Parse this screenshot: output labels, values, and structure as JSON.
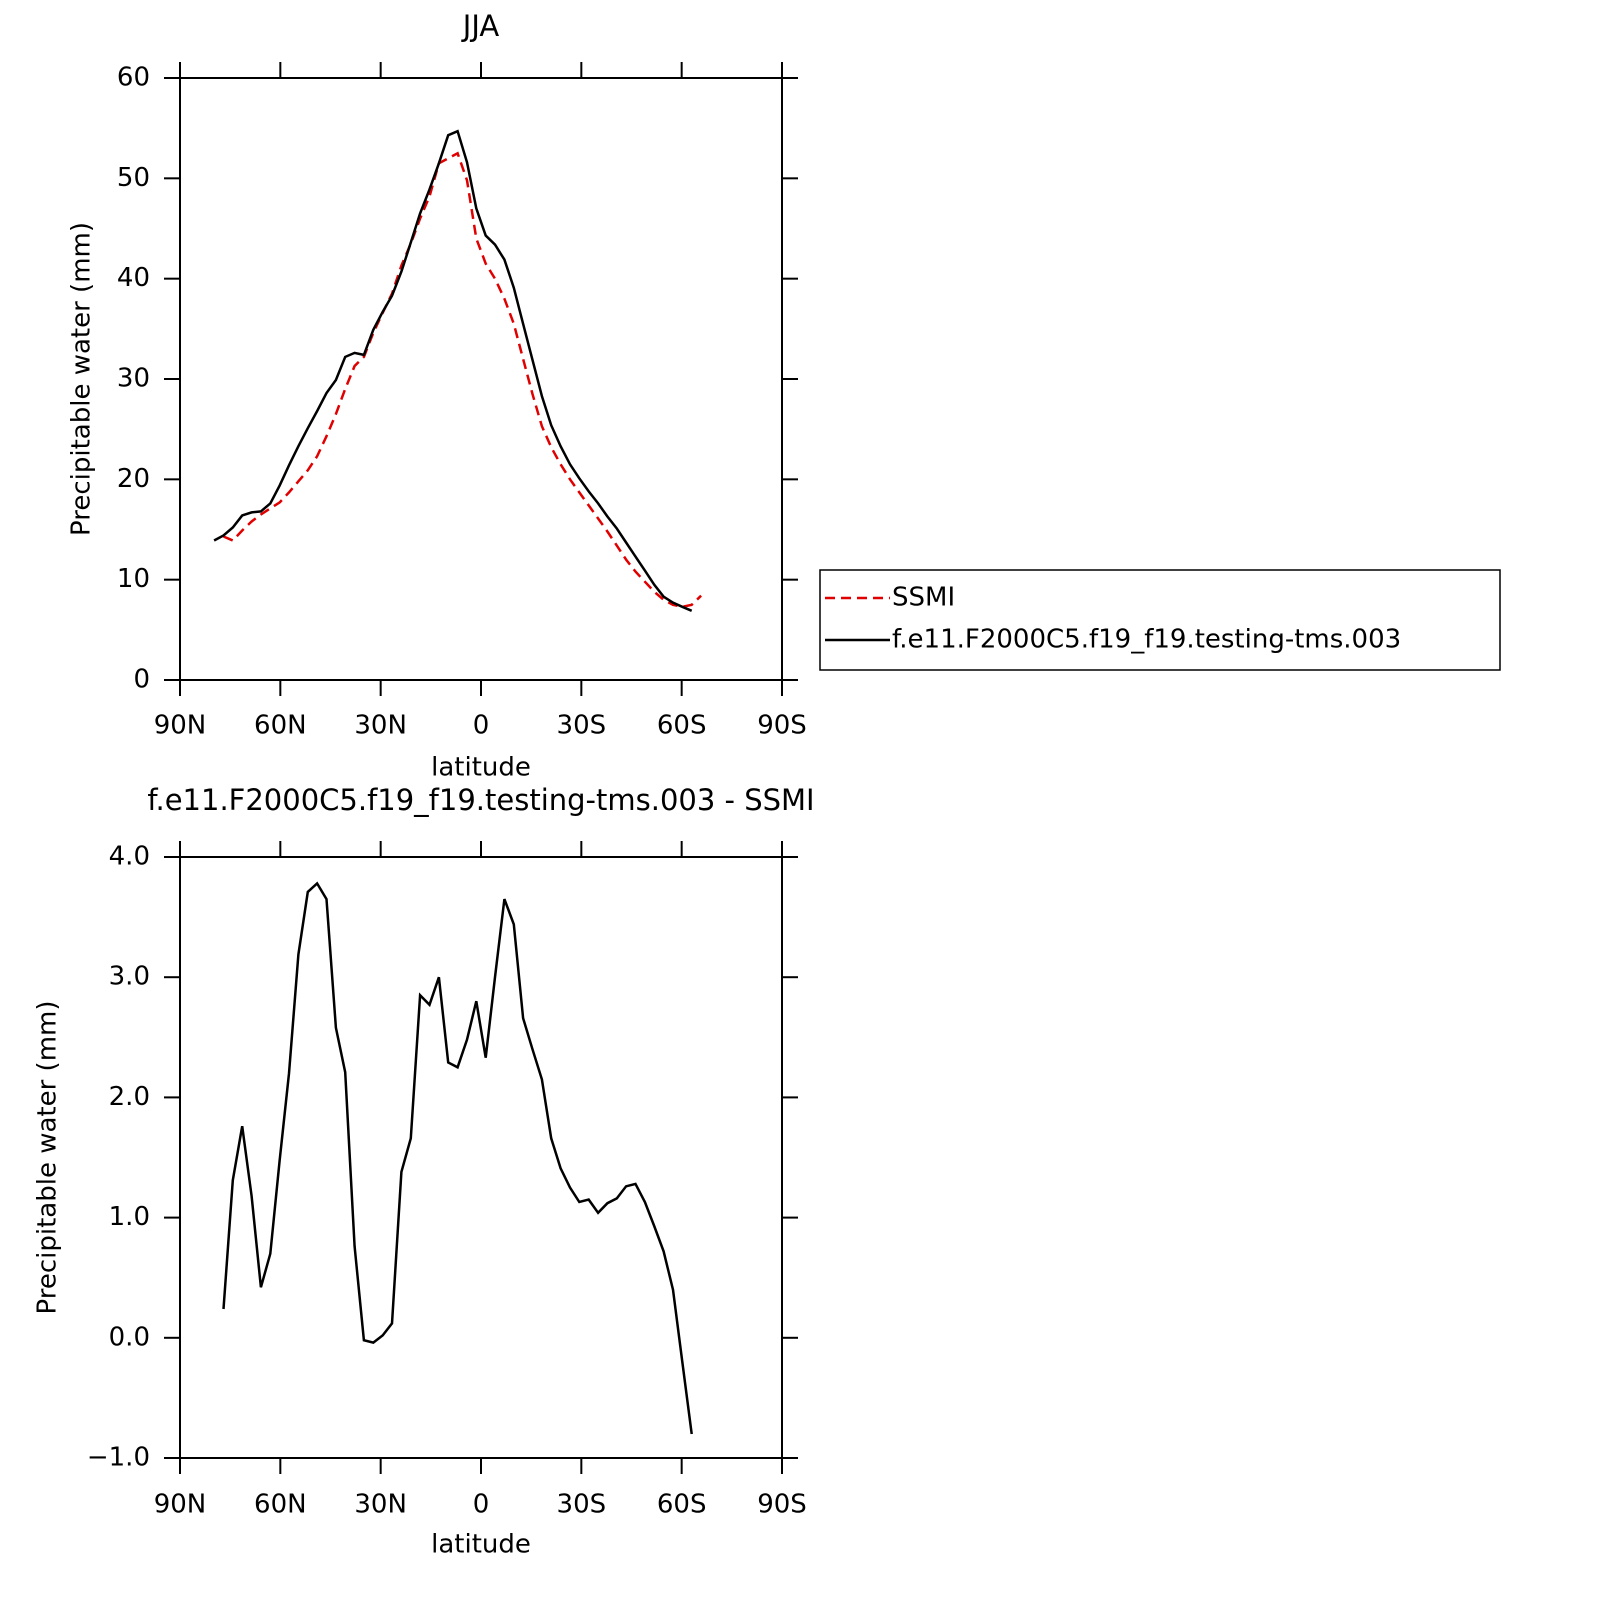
{
  "chart_data": [
    {
      "type": "line",
      "title": "JJA",
      "xlabel": "latitude",
      "ylabel": "Precipitable water (mm)",
      "x": [
        79.8,
        77.0,
        74.2,
        71.4,
        68.6,
        65.8,
        63.0,
        60.2,
        57.4,
        54.6,
        51.8,
        49.0,
        46.2,
        43.4,
        40.6,
        37.8,
        35.0,
        32.2,
        29.4,
        26.6,
        23.8,
        21.0,
        18.2,
        15.4,
        12.6,
        9.8,
        7.0,
        4.2,
        1.4,
        -1.4,
        -4.2,
        -7.0,
        -9.8,
        -12.6,
        -15.4,
        -18.2,
        -21.0,
        -23.8,
        -26.6,
        -29.4,
        -32.2,
        -35.0,
        -37.8,
        -40.6,
        -43.4,
        -46.2,
        -49.0,
        -51.8,
        -54.6,
        -57.4,
        -60.2,
        -63.0,
        -65.8
      ],
      "series": [
        {
          "name": "SSMI",
          "color": "#e00000",
          "dash": "dashed",
          "values": [
            null,
            14.3,
            13.9,
            14.9,
            15.8,
            16.5,
            17.1,
            17.7,
            18.7,
            19.8,
            20.9,
            22.3,
            24.3,
            26.5,
            29.0,
            31.3,
            32.2,
            34.6,
            36.6,
            38.5,
            41.3,
            43.5,
            46.0,
            48.2,
            51.5,
            52.0,
            52.5,
            49.8,
            44.0,
            41.5,
            40.0,
            38.0,
            35.5,
            32.0,
            28.5,
            25.3,
            23.2,
            21.5,
            20.0,
            18.7,
            17.4,
            16.1,
            14.8,
            13.4,
            12.0,
            10.8,
            9.8,
            8.8,
            8.0,
            7.5,
            7.3,
            7.5,
            8.4
          ]
        },
        {
          "name": "f.e11.F2000C5.f19_f19.testing-tms.003",
          "color": "#000000",
          "dash": "solid",
          "values": [
            13.9,
            14.4,
            15.2,
            16.4,
            16.7,
            16.8,
            17.6,
            19.4,
            21.4,
            23.3,
            25.1,
            26.8,
            28.6,
            29.9,
            32.2,
            32.6,
            32.4,
            34.9,
            36.7,
            38.3,
            40.7,
            43.6,
            46.5,
            48.9,
            51.5,
            54.3,
            54.7,
            51.6,
            47.0,
            44.3,
            43.4,
            41.9,
            39.1,
            35.5,
            31.9,
            28.3,
            25.4,
            23.3,
            21.5,
            20.1,
            18.8,
            17.6,
            16.3,
            15.1,
            13.7,
            12.3,
            10.9,
            9.5,
            8.3,
            7.7,
            7.3,
            6.9,
            null
          ]
        }
      ],
      "xlim": [
        90,
        -90
      ],
      "xticks": [
        {
          "value": 90,
          "label": "90N"
        },
        {
          "value": 60,
          "label": "60N"
        },
        {
          "value": 30,
          "label": "30N"
        },
        0,
        {
          "value": -30,
          "label": "30S"
        },
        {
          "value": -60,
          "label": "60S"
        },
        {
          "value": -90,
          "label": "90S"
        }
      ],
      "ylim": [
        0,
        60
      ],
      "yticks": [
        0,
        10,
        20,
        30,
        40,
        50,
        60
      ],
      "legend": "right"
    },
    {
      "type": "line",
      "title": "f.e11.F2000C5.f19_f19.testing-tms.003 - SSMI",
      "xlabel": "latitude",
      "ylabel": "Precipitable water (mm)",
      "x": [
        79.8,
        77.0,
        74.2,
        71.4,
        68.6,
        65.8,
        63.0,
        60.2,
        57.4,
        54.6,
        51.8,
        49.0,
        46.2,
        43.4,
        40.6,
        37.8,
        35.0,
        32.2,
        29.4,
        26.6,
        23.8,
        21.0,
        18.2,
        15.4,
        12.6,
        9.8,
        7.0,
        4.2,
        1.4,
        -1.4,
        -4.2,
        -7.0,
        -9.8,
        -12.6,
        -15.4,
        -18.2,
        -21.0,
        -23.8,
        -26.6,
        -29.4,
        -32.2,
        -35.0,
        -37.8,
        -40.6,
        -43.4,
        -46.2,
        -49.0,
        -51.8,
        -54.6,
        -57.4,
        -60.2,
        -63.0,
        -65.8
      ],
      "color": "#000000",
      "values": [
        null,
        0.24,
        1.31,
        1.76,
        1.18,
        0.42,
        0.7,
        1.48,
        2.2,
        3.19,
        3.71,
        3.78,
        3.65,
        2.58,
        2.21,
        0.76,
        -0.02,
        -0.04,
        0.02,
        0.12,
        1.38,
        1.66,
        2.85,
        2.77,
        3.0,
        2.29,
        2.25,
        2.48,
        2.8,
        2.33,
        3.0,
        3.65,
        3.44,
        2.66,
        2.4,
        2.15,
        1.66,
        1.41,
        1.25,
        1.13,
        1.15,
        1.04,
        1.12,
        1.16,
        1.26,
        1.28,
        1.13,
        0.93,
        0.72,
        0.4,
        -0.2,
        -0.8,
        null
      ],
      "xlim": [
        90,
        -90
      ],
      "xticks": [
        {
          "value": 90,
          "label": "90N"
        },
        {
          "value": 60,
          "label": "60N"
        },
        {
          "value": 30,
          "label": "30N"
        },
        0,
        {
          "value": -30,
          "label": "30S"
        },
        {
          "value": -60,
          "label": "60S"
        },
        {
          "value": -90,
          "label": "90S"
        }
      ],
      "ylim": [
        -1,
        4
      ],
      "yticks": [
        {
          "value": -1,
          "label": "−1.0"
        },
        {
          "value": 0,
          "label": "0.0"
        },
        {
          "value": 1,
          "label": "1.0"
        },
        {
          "value": 2,
          "label": "2.0"
        },
        {
          "value": 3,
          "label": "3.0"
        },
        {
          "value": 4,
          "label": "4.0"
        }
      ]
    }
  ]
}
